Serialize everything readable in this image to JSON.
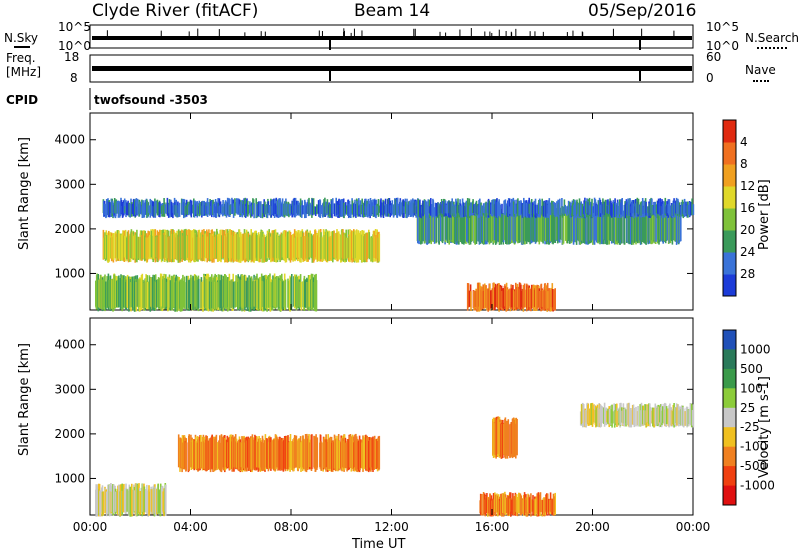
{
  "header": {
    "station": "Clyde River (fitACF)",
    "beam": "Beam 14",
    "date": "05/Sep/2016"
  },
  "top_panels": {
    "nsky_label": "N.Sky",
    "nsky_ticks": [
      "10^5",
      "10^0"
    ],
    "nsearch_label": "N.Search",
    "nsearch_ticks": [
      "10^5",
      "10^0"
    ],
    "freq_label_1": "Freq.",
    "freq_label_2": "[MHz]",
    "freq_ticks": [
      "18",
      "8"
    ],
    "nave_label": "Nave",
    "nave_ticks": [
      "60",
      "0"
    ],
    "cpid_label": "CPID",
    "cpid_value": "twofsound -3503",
    "cpid_change_hours": [
      9.5,
      21.7
    ]
  },
  "chart_data": [
    {
      "type": "heatmap",
      "title": "",
      "xlabel": "Time UT",
      "ylabel": "Slant Range [km]",
      "xlim": [
        0,
        24
      ],
      "ylim": [
        180,
        4600
      ],
      "xticks": [
        "00:00",
        "04:00",
        "08:00",
        "12:00",
        "16:00",
        "20:00",
        "00:00"
      ],
      "yticks": [
        "1000",
        "2000",
        "3000",
        "4000"
      ],
      "colorbar": {
        "label": "Power [dB]",
        "ticks": [
          "4",
          "8",
          "12",
          "16",
          "20",
          "24",
          "28"
        ],
        "colors": [
          "#1c3cd8",
          "#3a73d8",
          "#3a9a5a",
          "#7fc23a",
          "#e0d82a",
          "#f0a020",
          "#f07020",
          "#e02a10"
        ]
      },
      "approx_regions": [
        {
          "t0": 0.2,
          "t1": 9.0,
          "r0": 200,
          "r1": 900,
          "level": 3
        },
        {
          "t0": 0.5,
          "t1": 11.5,
          "r0": 1300,
          "r1": 1900,
          "level": 4
        },
        {
          "t0": 13.0,
          "t1": 23.5,
          "r0": 1700,
          "r1": 2400,
          "level": 2
        },
        {
          "t0": 15.0,
          "t1": 18.5,
          "r0": 200,
          "r1": 700,
          "level": 6
        },
        {
          "t0": 0.5,
          "t1": 24.0,
          "r0": 2300,
          "r1": 2600,
          "level": 1
        }
      ]
    },
    {
      "type": "heatmap",
      "title": "",
      "xlabel": "Time UT",
      "ylabel": "Slant Range [km]",
      "xlim": [
        0,
        24
      ],
      "ylim": [
        180,
        4600
      ],
      "xticks": [
        "00:00",
        "04:00",
        "08:00",
        "12:00",
        "16:00",
        "20:00",
        "00:00"
      ],
      "yticks": [
        "1000",
        "2000",
        "3000",
        "4000"
      ],
      "colorbar": {
        "label": "Velocity [m s-1]",
        "ticks": [
          "1000",
          "500",
          "100",
          "25",
          "-25",
          "-100",
          "-500",
          "-1000"
        ],
        "colors": [
          "#2050b8",
          "#2a7a5a",
          "#3a9a4a",
          "#8ccc3a",
          "#c8c8c8",
          "#f0c020",
          "#f08020",
          "#f04010",
          "#e01010"
        ]
      },
      "approx_regions": [
        {
          "t0": 3.5,
          "t1": 11.5,
          "r0": 1200,
          "r1": 1900,
          "level": 6
        },
        {
          "t0": 0.2,
          "t1": 3.0,
          "r0": 200,
          "r1": 800,
          "level": 4
        },
        {
          "t0": 15.5,
          "t1": 18.5,
          "r0": 200,
          "r1": 600,
          "level": 6
        },
        {
          "t0": 19.5,
          "t1": 24.0,
          "r0": 2200,
          "r1": 2600,
          "level": 4
        },
        {
          "t0": 16.0,
          "t1": 17.0,
          "r0": 1500,
          "r1": 2300,
          "level": 6
        }
      ]
    }
  ]
}
